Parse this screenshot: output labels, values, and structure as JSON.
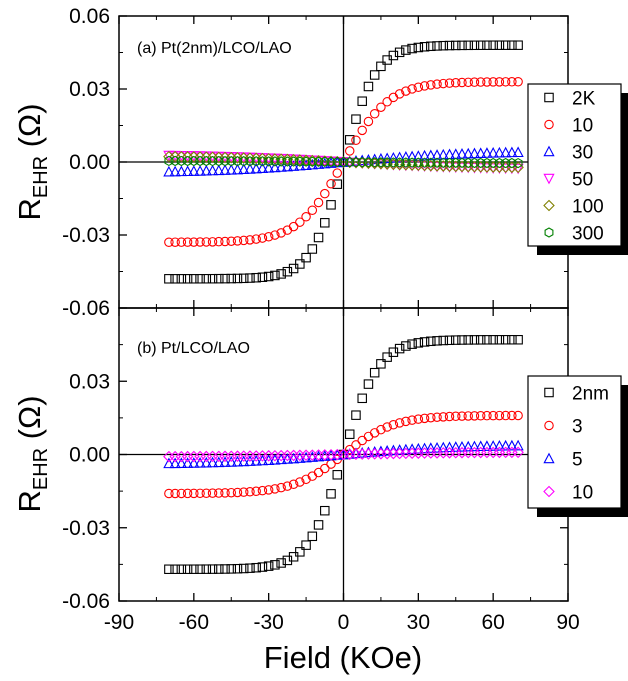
{
  "x_axis": {
    "label": "Field (KOe)",
    "ticks": [
      "-90",
      "-60",
      "-30",
      "0",
      "30",
      "60",
      "90"
    ]
  },
  "chart_data": [
    {
      "type": "scatter",
      "panel_label": "(a) Pt(2nm)/LCO/LAO",
      "xlabel": "Field (KOe)",
      "ylabel": "R_EHR (Ω)",
      "ylabel_main": "R",
      "ylabel_sub": "EHR",
      "ylabel_unit": " (Ω)",
      "xlim": [
        -90,
        90
      ],
      "ylim": [
        -0.06,
        0.06
      ],
      "xticks": [
        -90,
        -60,
        -30,
        0,
        30,
        60,
        90
      ],
      "ytick_labels": [
        "0.06",
        "0.03",
        "0.00",
        "-0.03",
        "-0.06"
      ],
      "legend_position": "right",
      "grid": false,
      "field_range": [
        -70,
        70
      ],
      "series": [
        {
          "name": "2K",
          "marker": "square",
          "color": "#000000",
          "saturation": 0.048,
          "hsat": 13
        },
        {
          "name": "10",
          "marker": "circle",
          "color": "#ff0000",
          "saturation": 0.033,
          "hsat": 18
        },
        {
          "name": "30",
          "marker": "triangle-up",
          "color": "#0000ff",
          "saturation": 0.0045,
          "hsat": 50
        },
        {
          "name": "50",
          "marker": "triangle-down",
          "color": "#ff00ff",
          "saturation": -0.003,
          "hsat": 50
        },
        {
          "name": "100",
          "marker": "diamond",
          "color": "#808000",
          "saturation": -0.0025,
          "hsat": 50
        },
        {
          "name": "300",
          "marker": "hexagon",
          "color": "#008000",
          "saturation": -0.0005,
          "hsat": 50
        }
      ]
    },
    {
      "type": "scatter",
      "panel_label": "(b) Pt/LCO/LAO",
      "xlabel": "Field (KOe)",
      "ylabel": "R_EHR (Ω)",
      "ylabel_main": "R",
      "ylabel_sub": "EHR",
      "ylabel_unit": " (Ω)",
      "xlim": [
        -90,
        90
      ],
      "ylim": [
        -0.06,
        0.06
      ],
      "xticks": [
        -90,
        -60,
        -30,
        0,
        30,
        60,
        90
      ],
      "ytick_labels": [
        "0.03",
        "0.00",
        "-0.03",
        "-0.06"
      ],
      "legend_position": "right",
      "grid": false,
      "field_range": [
        -70,
        70
      ],
      "series": [
        {
          "name": "2nm",
          "marker": "square",
          "color": "#000000",
          "saturation": 0.047,
          "hsat": 14
        },
        {
          "name": "3",
          "marker": "circle",
          "color": "#ff0000",
          "saturation": 0.016,
          "hsat": 20
        },
        {
          "name": "5",
          "marker": "triangle-up",
          "color": "#0000ff",
          "saturation": 0.004,
          "hsat": 45
        },
        {
          "name": "10",
          "marker": "diamond",
          "color": "#ff00ff",
          "saturation": 0.001,
          "hsat": 50
        }
      ]
    }
  ]
}
